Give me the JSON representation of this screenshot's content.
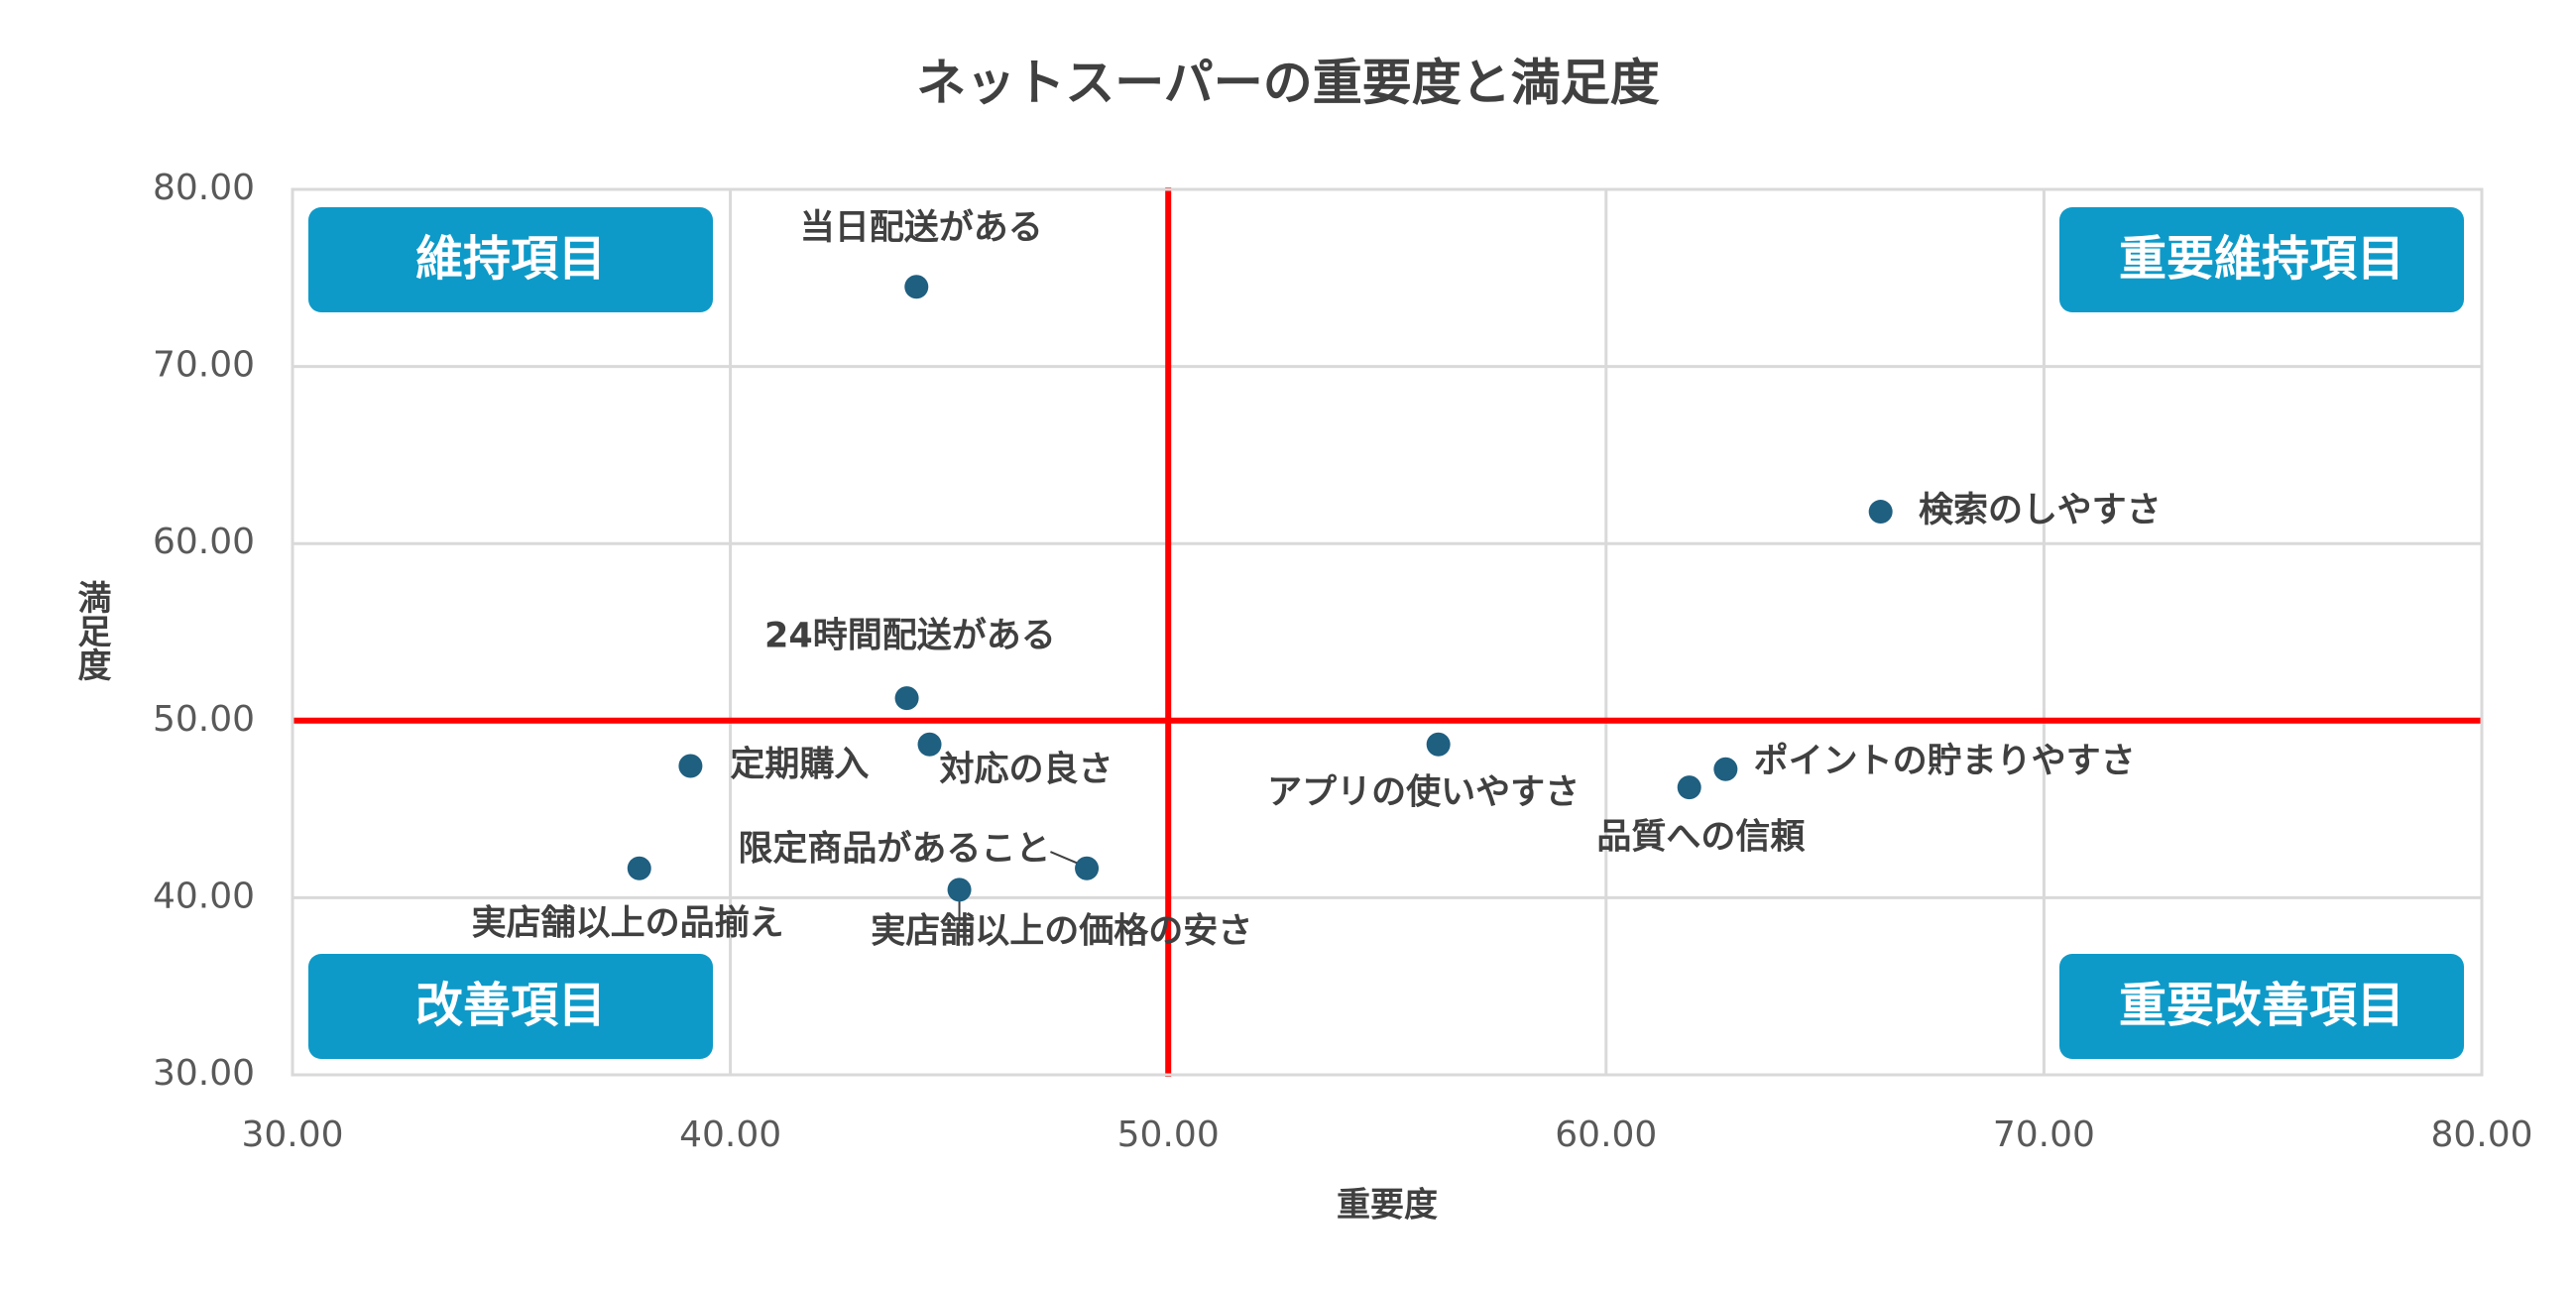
{
  "chart_data": {
    "type": "scatter",
    "title": "ネットスーパーの重要度と満足度",
    "x_label": "重要度",
    "y_label": "満足度",
    "xlim": [
      30,
      80
    ],
    "ylim": [
      30,
      80
    ],
    "xticks": [
      {
        "value": 30,
        "label": "30.00"
      },
      {
        "value": 40,
        "label": "40.00"
      },
      {
        "value": 50,
        "label": "50.00"
      },
      {
        "value": 60,
        "label": "60.00"
      },
      {
        "value": 70,
        "label": "70.00"
      },
      {
        "value": 80,
        "label": "80.00"
      }
    ],
    "yticks": [
      {
        "value": 30,
        "label": "30.00"
      },
      {
        "value": 40,
        "label": "40.00"
      },
      {
        "value": 50,
        "label": "50.00"
      },
      {
        "value": 60,
        "label": "60.00"
      },
      {
        "value": 70,
        "label": "70.00"
      },
      {
        "value": 80,
        "label": "80.00"
      }
    ],
    "grid": true,
    "color": "#1f5f80",
    "points": [
      {
        "label": "当日配送がある",
        "x": 44.25,
        "y": 74.5
      },
      {
        "label": "検索のしやすさ",
        "x": 66.27,
        "y": 61.8
      },
      {
        "label": "24時間配送がある",
        "x": 44.03,
        "y": 51.27
      },
      {
        "label": "対応の良さ",
        "x": 44.55,
        "y": 48.66
      },
      {
        "label": "定期購入",
        "x": 39.09,
        "y": 47.44
      },
      {
        "label": "アプリの使いやすさ",
        "x": 56.17,
        "y": 48.66
      },
      {
        "label": "ポイントの貯まりやすさ",
        "x": 62.73,
        "y": 47.26
      },
      {
        "label": "品質への信頼",
        "x": 61.9,
        "y": 46.23
      },
      {
        "label": "限定商品があること",
        "x": 48.14,
        "y": 41.66
      },
      {
        "label": "実店舗以上の価格の安さ",
        "x": 45.23,
        "y": 40.45
      },
      {
        "label": "実店舗以上の品揃え",
        "x": 37.92,
        "y": 41.66
      }
    ],
    "reference_lines": {
      "x": 50,
      "y": 50,
      "color": "#ff0000"
    },
    "quadrant_labels": [
      {
        "text": "維持項目",
        "corner": "top-left"
      },
      {
        "text": "重要維持項目",
        "corner": "top-right"
      },
      {
        "text": "改善項目",
        "corner": "bottom-left"
      },
      {
        "text": "重要改善項目",
        "corner": "bottom-right"
      }
    ],
    "quadrant_color": "#0e9ac8"
  }
}
